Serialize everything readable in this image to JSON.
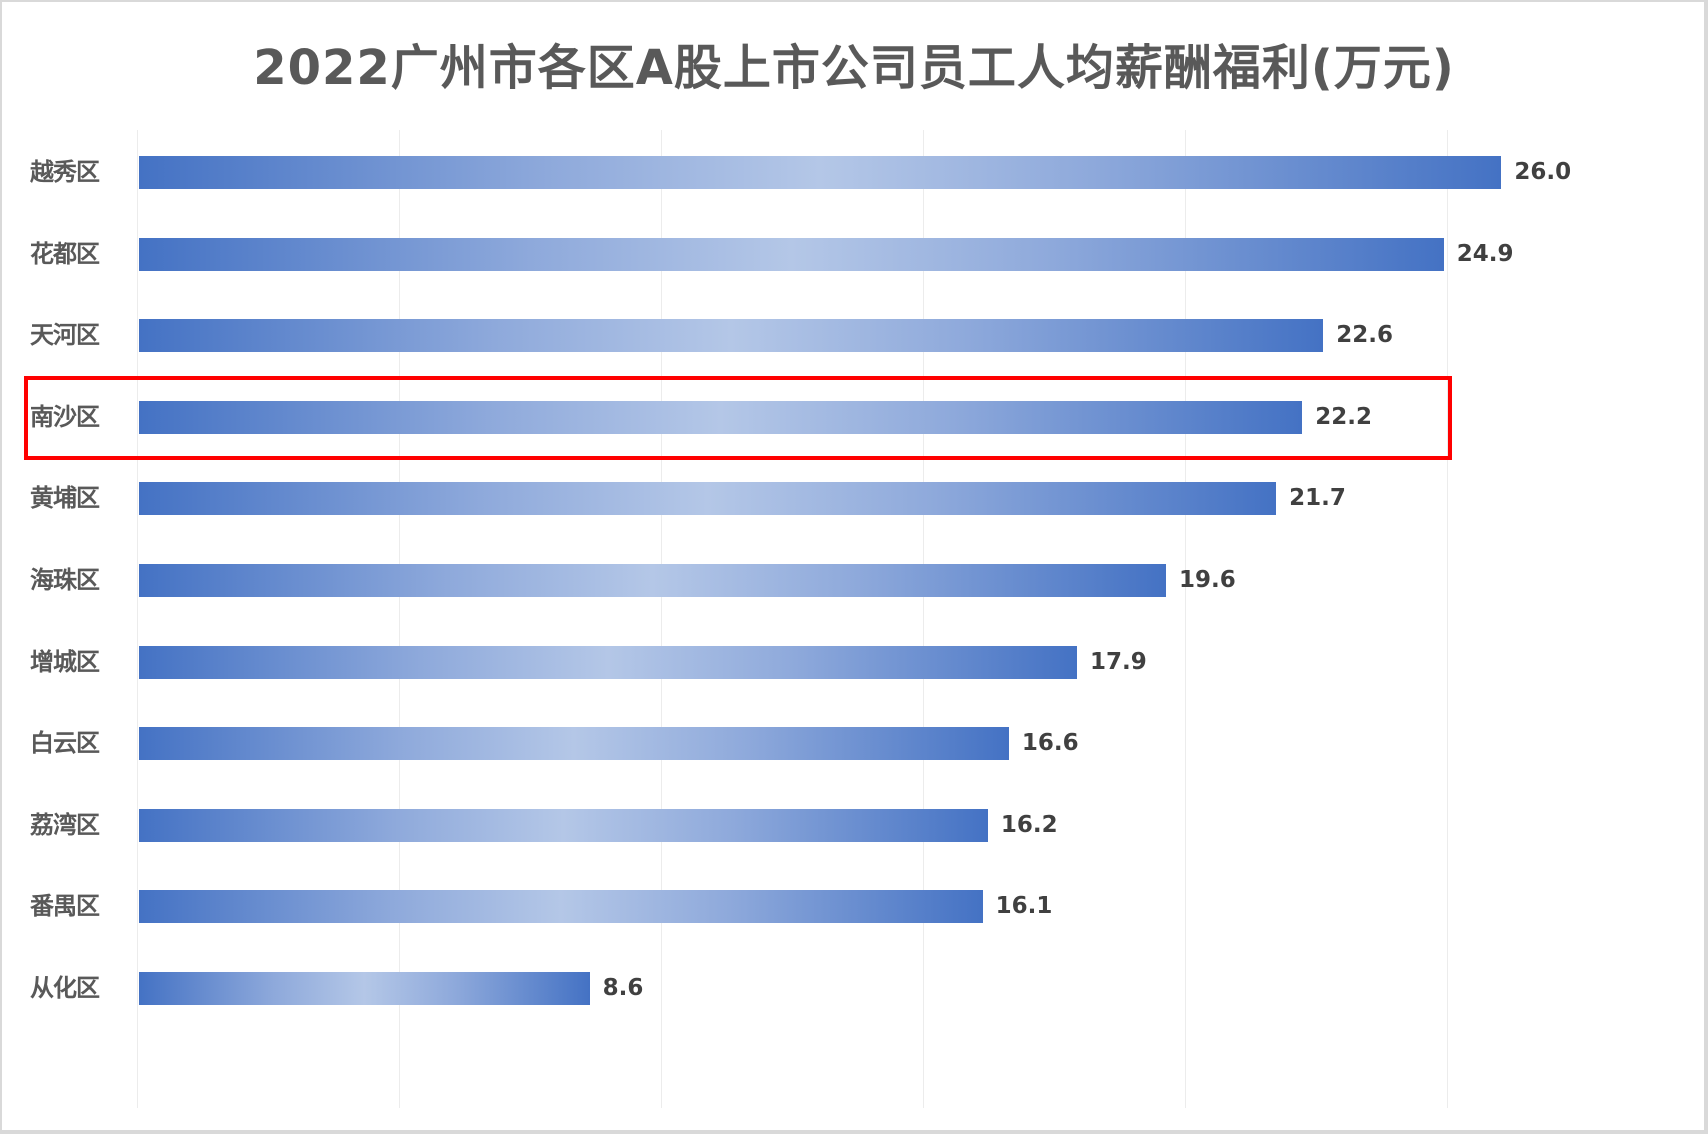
{
  "title": "2022广州市各区A股上市公司员工人均薪酬福利(万元)",
  "highlight": {
    "category": "南沙区",
    "color": "#ff0000"
  },
  "colors": {
    "bar_edge": "#4472c4",
    "bar_center": "#b4c7e7",
    "title": "#595959",
    "highlight_box": "#ff0000"
  },
  "chart_data": {
    "type": "bar",
    "orientation": "horizontal",
    "title": "2022广州市各区A股上市公司员工人均薪酬福利(万元)",
    "xlabel": "",
    "ylabel": "",
    "categories": [
      "越秀区",
      "花都区",
      "天河区",
      "南沙区",
      "黄埔区",
      "海珠区",
      "增城区",
      "白云区",
      "荔湾区",
      "番禺区",
      "从化区"
    ],
    "values": [
      26.0,
      24.9,
      22.6,
      22.2,
      21.7,
      19.6,
      17.9,
      16.6,
      16.2,
      16.1,
      8.6
    ],
    "value_labels": [
      "26.0",
      "24.9",
      "22.6",
      "22.2",
      "21.7",
      "19.6",
      "17.9",
      "16.6",
      "16.2",
      "16.1",
      "8.6"
    ],
    "xlim": [
      0,
      30
    ],
    "grid": true,
    "gridline_interval": 5,
    "legend": "none",
    "data_labels": true,
    "highlighted_category": "南沙区"
  }
}
